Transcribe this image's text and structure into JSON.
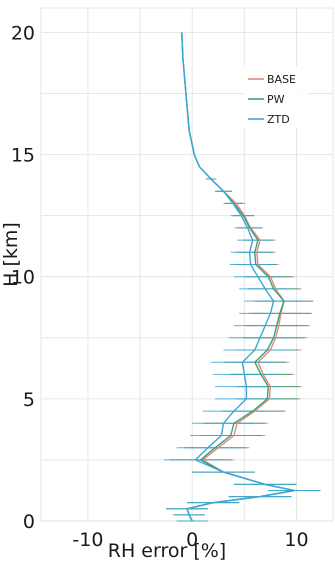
{
  "chart_data": {
    "type": "line",
    "title": "",
    "xlabel": "RH error [%]",
    "ylabel": "H [km]",
    "xlim": [
      -14.5,
      13.5
    ],
    "ylim": [
      0,
      21
    ],
    "xticks": [
      -10,
      0,
      10
    ],
    "yticks": [
      0,
      5,
      10,
      15,
      20
    ],
    "xtick_labels": [
      "-10",
      "0",
      "10"
    ],
    "ytick_labels": [
      "0",
      "5",
      "10",
      "15",
      "20"
    ],
    "grid": true,
    "legend_position": "top-right",
    "series": [
      {
        "name": "BASE",
        "color": "#e8857a",
        "points": [
          {
            "h": 20.0,
            "x": -1.0,
            "err": 0
          },
          {
            "h": 19.0,
            "x": -0.9,
            "err": 0
          },
          {
            "h": 18.0,
            "x": -0.7,
            "err": 0
          },
          {
            "h": 17.0,
            "x": -0.5,
            "err": 0
          },
          {
            "h": 16.0,
            "x": -0.3,
            "err": 0
          },
          {
            "h": 15.0,
            "x": 0.2,
            "err": 0
          },
          {
            "h": 14.5,
            "x": 0.7,
            "err": 0
          },
          {
            "h": 14.0,
            "x": 1.8,
            "err": 0.5
          },
          {
            "h": 13.5,
            "x": 3.0,
            "err": 0.8
          },
          {
            "h": 13.0,
            "x": 4.2,
            "err": 0.9
          },
          {
            "h": 12.5,
            "x": 5.0,
            "err": 1.0
          },
          {
            "h": 12.0,
            "x": 5.6,
            "err": 1.2
          },
          {
            "h": 11.5,
            "x": 6.5,
            "err": 1.5
          },
          {
            "h": 11.0,
            "x": 6.2,
            "err": 1.8
          },
          {
            "h": 10.5,
            "x": 6.3,
            "err": 2.0
          },
          {
            "h": 10.0,
            "x": 7.5,
            "err": 2.3
          },
          {
            "h": 9.5,
            "x": 8.0,
            "err": 2.5
          },
          {
            "h": 9.0,
            "x": 8.8,
            "err": 2.8
          },
          {
            "h": 8.5,
            "x": 8.5,
            "err": 3.0
          },
          {
            "h": 8.0,
            "x": 8.3,
            "err": 3.0
          },
          {
            "h": 7.5,
            "x": 8.0,
            "err": 3.0
          },
          {
            "h": 7.0,
            "x": 7.5,
            "err": 3.0
          },
          {
            "h": 6.5,
            "x": 6.3,
            "err": 3.0
          },
          {
            "h": 6.0,
            "x": 6.8,
            "err": 3.0
          },
          {
            "h": 5.5,
            "x": 7.5,
            "err": 3.0
          },
          {
            "h": 5.0,
            "x": 7.4,
            "err": 3.0
          },
          {
            "h": 4.5,
            "x": 6.0,
            "err": 3.0
          },
          {
            "h": 4.0,
            "x": 4.3,
            "err": 3.0
          },
          {
            "h": 3.5,
            "x": 4.0,
            "err": 3.0
          },
          {
            "h": 3.0,
            "x": 2.5,
            "err": 3.0
          },
          {
            "h": 2.5,
            "x": 1.0,
            "err": 3.0
          },
          {
            "h": 2.0,
            "x": 3.0,
            "err": 3.0
          },
          {
            "h": 1.5,
            "x": 7.0,
            "err": 3.0
          },
          {
            "h": 1.25,
            "x": 9.8,
            "err": 2.5
          },
          {
            "h": 1.0,
            "x": 6.5,
            "err": 3.0
          },
          {
            "h": 0.75,
            "x": 2.0,
            "err": 2.5
          },
          {
            "h": 0.5,
            "x": -0.5,
            "err": 2.0
          },
          {
            "h": 0.25,
            "x": -0.3,
            "err": 1.5
          },
          {
            "h": 0.0,
            "x": 0.0,
            "err": 1.5
          }
        ]
      },
      {
        "name": "PW",
        "color": "#2ea67a",
        "points": [
          {
            "h": 20.0,
            "x": -1.0,
            "err": 0
          },
          {
            "h": 19.0,
            "x": -0.9,
            "err": 0
          },
          {
            "h": 18.0,
            "x": -0.7,
            "err": 0
          },
          {
            "h": 17.0,
            "x": -0.5,
            "err": 0
          },
          {
            "h": 16.0,
            "x": -0.3,
            "err": 0
          },
          {
            "h": 15.0,
            "x": 0.2,
            "err": 0
          },
          {
            "h": 14.5,
            "x": 0.7,
            "err": 0
          },
          {
            "h": 14.0,
            "x": 1.8,
            "err": 0.5
          },
          {
            "h": 13.5,
            "x": 3.0,
            "err": 0.8
          },
          {
            "h": 13.0,
            "x": 4.0,
            "err": 0.9
          },
          {
            "h": 12.5,
            "x": 4.9,
            "err": 1.0
          },
          {
            "h": 12.0,
            "x": 5.5,
            "err": 1.2
          },
          {
            "h": 11.5,
            "x": 6.3,
            "err": 1.5
          },
          {
            "h": 11.0,
            "x": 6.0,
            "err": 1.8
          },
          {
            "h": 10.5,
            "x": 6.1,
            "err": 2.0
          },
          {
            "h": 10.0,
            "x": 7.3,
            "err": 2.3
          },
          {
            "h": 9.5,
            "x": 7.8,
            "err": 2.5
          },
          {
            "h": 9.0,
            "x": 8.8,
            "err": 2.8
          },
          {
            "h": 8.5,
            "x": 8.4,
            "err": 3.0
          },
          {
            "h": 8.0,
            "x": 8.1,
            "err": 3.0
          },
          {
            "h": 7.5,
            "x": 7.8,
            "err": 3.0
          },
          {
            "h": 7.0,
            "x": 7.2,
            "err": 3.0
          },
          {
            "h": 6.5,
            "x": 6.0,
            "err": 3.0
          },
          {
            "h": 6.0,
            "x": 6.6,
            "err": 3.0
          },
          {
            "h": 5.5,
            "x": 7.3,
            "err": 3.0
          },
          {
            "h": 5.0,
            "x": 7.2,
            "err": 3.0
          },
          {
            "h": 4.5,
            "x": 5.8,
            "err": 3.0
          },
          {
            "h": 4.0,
            "x": 4.0,
            "err": 3.0
          },
          {
            "h": 3.5,
            "x": 3.7,
            "err": 3.0
          },
          {
            "h": 3.0,
            "x": 2.2,
            "err": 3.0
          },
          {
            "h": 2.5,
            "x": 0.8,
            "err": 3.0
          },
          {
            "h": 2.0,
            "x": 3.0,
            "err": 3.0
          },
          {
            "h": 1.5,
            "x": 7.0,
            "err": 3.0
          },
          {
            "h": 1.25,
            "x": 9.8,
            "err": 2.5
          },
          {
            "h": 1.0,
            "x": 6.5,
            "err": 3.0
          },
          {
            "h": 0.75,
            "x": 2.0,
            "err": 2.5
          },
          {
            "h": 0.5,
            "x": -0.5,
            "err": 2.0
          },
          {
            "h": 0.25,
            "x": -0.3,
            "err": 1.5
          },
          {
            "h": 0.0,
            "x": 0.0,
            "err": 1.5
          }
        ]
      },
      {
        "name": "ZTD",
        "color": "#3ba7d9",
        "points": [
          {
            "h": 20.0,
            "x": -1.0,
            "err": 0
          },
          {
            "h": 19.0,
            "x": -0.9,
            "err": 0
          },
          {
            "h": 18.0,
            "x": -0.7,
            "err": 0
          },
          {
            "h": 17.0,
            "x": -0.5,
            "err": 0
          },
          {
            "h": 16.0,
            "x": -0.3,
            "err": 0
          },
          {
            "h": 15.0,
            "x": 0.2,
            "err": 0
          },
          {
            "h": 14.5,
            "x": 0.7,
            "err": 0
          },
          {
            "h": 14.0,
            "x": 1.8,
            "err": 0.5
          },
          {
            "h": 13.5,
            "x": 3.0,
            "err": 0.8
          },
          {
            "h": 13.0,
            "x": 3.9,
            "err": 0.9
          },
          {
            "h": 12.5,
            "x": 4.7,
            "err": 1.0
          },
          {
            "h": 12.0,
            "x": 5.3,
            "err": 1.2
          },
          {
            "h": 11.5,
            "x": 5.8,
            "err": 1.5
          },
          {
            "h": 11.0,
            "x": 5.5,
            "err": 1.8
          },
          {
            "h": 10.5,
            "x": 5.6,
            "err": 2.0
          },
          {
            "h": 10.0,
            "x": 6.3,
            "err": 2.3
          },
          {
            "h": 9.5,
            "x": 7.0,
            "err": 2.5
          },
          {
            "h": 9.0,
            "x": 7.8,
            "err": 2.8
          },
          {
            "h": 8.5,
            "x": 7.5,
            "err": 3.0
          },
          {
            "h": 8.0,
            "x": 7.0,
            "err": 3.0
          },
          {
            "h": 7.5,
            "x": 6.5,
            "err": 3.0
          },
          {
            "h": 7.0,
            "x": 6.0,
            "err": 3.0
          },
          {
            "h": 6.5,
            "x": 4.8,
            "err": 3.0
          },
          {
            "h": 6.0,
            "x": 5.0,
            "err": 3.0
          },
          {
            "h": 5.5,
            "x": 5.2,
            "err": 3.0
          },
          {
            "h": 5.0,
            "x": 5.2,
            "err": 3.0
          },
          {
            "h": 4.5,
            "x": 4.0,
            "err": 3.0
          },
          {
            "h": 4.0,
            "x": 3.0,
            "err": 3.0
          },
          {
            "h": 3.5,
            "x": 2.8,
            "err": 3.0
          },
          {
            "h": 3.0,
            "x": 1.5,
            "err": 3.0
          },
          {
            "h": 2.5,
            "x": 0.3,
            "err": 3.0
          },
          {
            "h": 2.0,
            "x": 3.0,
            "err": 3.0
          },
          {
            "h": 1.5,
            "x": 7.0,
            "err": 3.0
          },
          {
            "h": 1.25,
            "x": 9.8,
            "err": 2.5
          },
          {
            "h": 1.0,
            "x": 6.5,
            "err": 3.0
          },
          {
            "h": 0.75,
            "x": 2.0,
            "err": 2.5
          },
          {
            "h": 0.5,
            "x": -0.5,
            "err": 2.0
          },
          {
            "h": 0.25,
            "x": -0.3,
            "err": 1.5
          },
          {
            "h": 0.0,
            "x": 0.0,
            "err": 1.5
          }
        ]
      }
    ]
  }
}
